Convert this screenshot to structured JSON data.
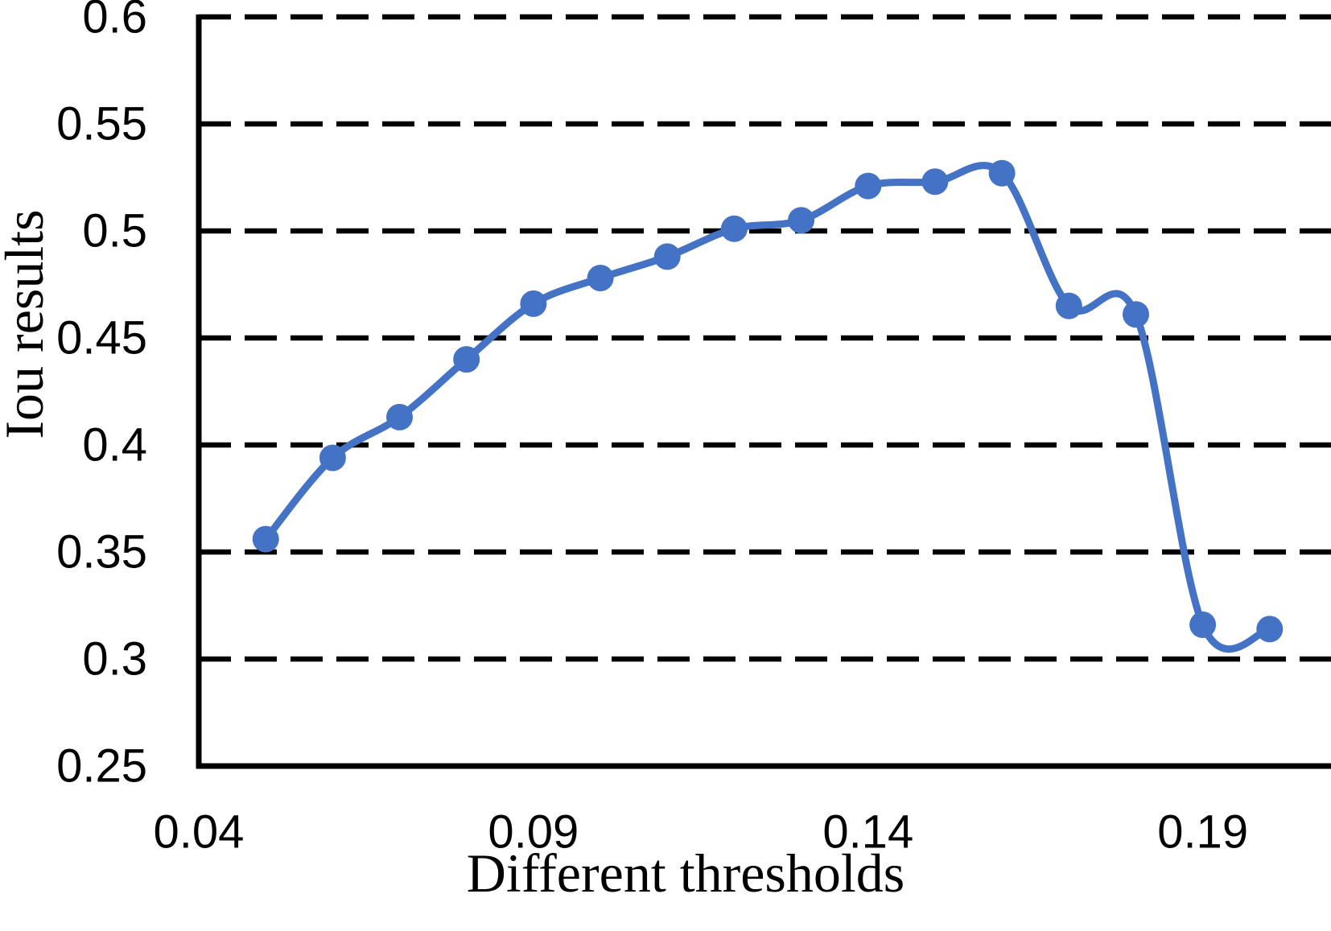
{
  "page": {
    "background": "#ffffff"
  },
  "chart_data": {
    "type": "line",
    "title": "",
    "xlabel": "Different thresholds",
    "ylabel": "Iou results",
    "x": [
      0.05,
      0.06,
      0.07,
      0.08,
      0.09,
      0.1,
      0.11,
      0.12,
      0.13,
      0.14,
      0.15,
      0.16,
      0.17,
      0.18,
      0.19,
      0.2
    ],
    "series": [
      {
        "name": "Iou results",
        "values": [
          0.356,
          0.394,
          0.413,
          0.44,
          0.466,
          0.478,
          0.488,
          0.501,
          0.505,
          0.521,
          0.523,
          0.527,
          0.465,
          0.461,
          0.316,
          0.314
        ],
        "color": "#4472C4",
        "marker": "circle",
        "smooth": true
      }
    ],
    "xlim": [
      0.04,
      0.21
    ],
    "ylim": [
      0.25,
      0.6
    ],
    "x_tick_values": [
      0.04,
      0.09,
      0.14,
      0.19
    ],
    "x_tick_labels": [
      "0.04",
      "0.09",
      "0.14",
      "0.19"
    ],
    "y_tick_values": [
      0.25,
      0.3,
      0.35,
      0.4,
      0.45,
      0.5,
      0.55,
      0.6
    ],
    "y_tick_labels": [
      "0.25",
      "0.3",
      "0.35",
      "0.4",
      "0.45",
      "0.5",
      "0.55",
      "0.6"
    ],
    "grid": {
      "horizontal": true,
      "style": "dashed",
      "color": "#000000"
    },
    "legend": "none",
    "axis_color": "#000000",
    "text_color": "#000000"
  }
}
